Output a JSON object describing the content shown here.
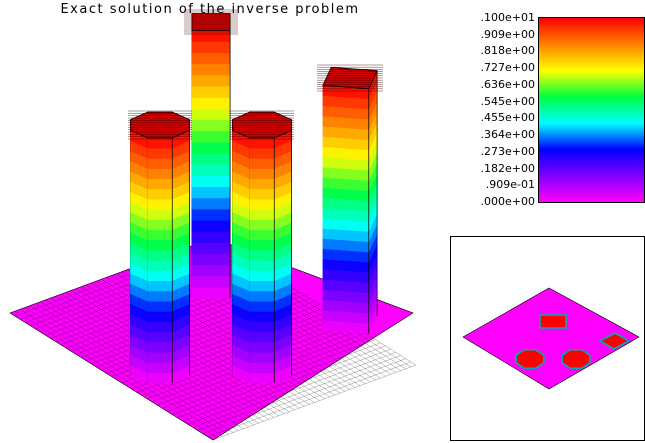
{
  "title": "Exact solution of the inverse problem",
  "colorbar": {
    "ticks": [
      ".100e+01",
      ".909e+00",
      ".818e+00",
      ".727e+00",
      ".636e+00",
      ".545e+00",
      ".455e+00",
      ".364e+00",
      ".273e+00",
      ".182e+00",
      ".909e-01",
      ".000e+00"
    ],
    "range": [
      0,
      1
    ],
    "colormap": [
      "#ff00ff",
      "#8000ff",
      "#0000ff",
      "#00ffff",
      "#00ff40",
      "#ffff00",
      "#ff8000",
      "#ff0000"
    ]
  },
  "colors": {
    "base": "#ff00ff",
    "top": "#ff0000",
    "background": "#ffffff"
  }
}
